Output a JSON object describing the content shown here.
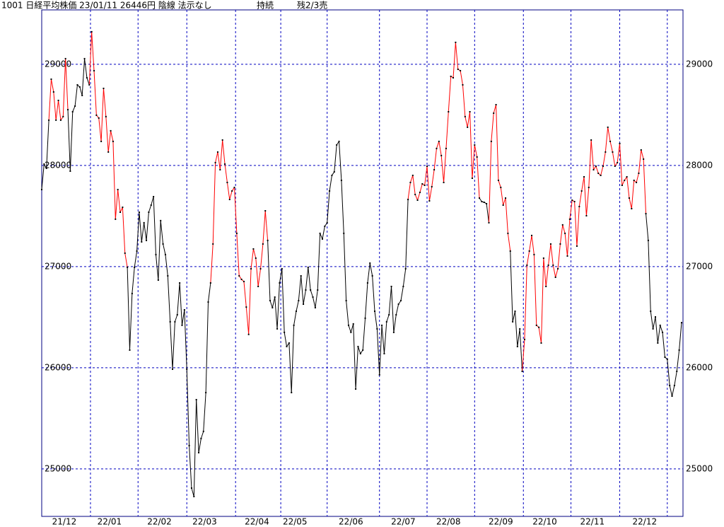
{
  "chart_data": {
    "type": "line",
    "title": "1001 日経平均株価 23/01/11 26446円 陰線 法示なし",
    "status": "持続",
    "signal": "残2/3売",
    "values": [
      27762,
      28014,
      27972,
      28448,
      28853,
      28727,
      28448,
      28643,
      28448,
      28483,
      29056,
      28552,
      27944,
      28531,
      28587,
      28797,
      28776,
      28692,
      29056,
      28867,
      28797,
      29322,
      28937,
      28497,
      28469,
      28238,
      28762,
      28483,
      28133,
      28343,
      28238,
      27469,
      27762,
      27538,
      27587,
      27133,
      26993,
      26175,
      26734,
      26993,
      27154,
      27538,
      27245,
      27434,
      27259,
      27538,
      27608,
      27692,
      27119,
      26867,
      27455,
      27224,
      27119,
      26909,
      26455,
      25986,
      26455,
      26524,
      26839,
      26420,
      26573,
      25986,
      25231,
      24811,
      24727,
      25685,
      25161,
      25301,
      25371,
      25755,
      26650,
      26839,
      27224,
      28028,
      28133,
      27958,
      28252,
      28014,
      27832,
      27664,
      27748,
      27783,
      27329,
      26909,
      26874,
      26853,
      26600,
      26330,
      26979,
      27175,
      27084,
      26804,
      26979,
      27224,
      27552,
      27259,
      26664,
      26594,
      26699,
      26385,
      26839,
      26979,
      26350,
      26210,
      26245,
      25755,
      26420,
      26559,
      26664,
      26909,
      26629,
      26769,
      26993,
      26769,
      26699,
      26594,
      26769,
      27329,
      27273,
      27399,
      27434,
      27748,
      27902,
      27937,
      28203,
      28238,
      27853,
      27329,
      26664,
      26420,
      26350,
      26434,
      25790,
      26210,
      26140,
      26175,
      26490,
      26839,
      27035,
      26909,
      26559,
      26385,
      25930,
      26420,
      26140,
      26455,
      26524,
      26804,
      26350,
      26524,
      26629,
      26664,
      26804,
      26979,
      27664,
      27832,
      27902,
      27713,
      27657,
      27734,
      27818,
      27804,
      27993,
      27650,
      27790,
      27958,
      28168,
      28238,
      28098,
      27832,
      28168,
      28531,
      28881,
      28867,
      29217,
      28951,
      28937,
      28797,
      28483,
      28378,
      28531,
      27874,
      28203,
      28084,
      27678,
      27643,
      27636,
      27622,
      27434,
      28238,
      28517,
      28601,
      27853,
      27783,
      27608,
      27678,
      27329,
      27154,
      26455,
      26559,
      26210,
      26385,
      25965,
      26280,
      27014,
      27154,
      27308,
      27119,
      26420,
      26400,
      26245,
      27084,
      26804,
      27014,
      27224,
      27014,
      26895,
      26979,
      27224,
      27413,
      27329,
      27105,
      27469,
      27657,
      27643,
      27203,
      27594,
      27748,
      27888,
      27503,
      27783,
      28252,
      27958,
      27993,
      27923,
      27902,
      27993,
      28133,
      28378,
      28238,
      28133,
      27993,
      28028,
      28217,
      27804,
      27853,
      27888,
      27678,
      27573,
      27853,
      27832,
      27923,
      28154,
      28063,
      27524,
      27259,
      26559,
      26385,
      26503,
      26245,
      26420,
      26350,
      26105,
      26084,
      25825,
      25720,
      25825,
      25965,
      26175,
      26446
    ],
    "line_color": "#000000",
    "highlight_color": "#ff0000",
    "highlight_segments": [
      [
        4,
        11
      ],
      [
        21,
        36
      ],
      [
        72,
        95
      ],
      [
        155,
        184
      ],
      [
        189,
        197
      ],
      [
        203,
        254
      ]
    ],
    "xlim": [
      0,
      269.6
    ],
    "xticks": [
      {
        "value": 9.5,
        "label": "21/12"
      },
      {
        "value": 28.5,
        "label": "22/01"
      },
      {
        "value": 49.5,
        "label": "22/02"
      },
      {
        "value": 68.5,
        "label": "22/03"
      },
      {
        "value": 90.5,
        "label": "22/04"
      },
      {
        "value": 106.5,
        "label": "22/05"
      },
      {
        "value": 130,
        "label": "22/06"
      },
      {
        "value": 152,
        "label": "22/07"
      },
      {
        "value": 171,
        "label": "22/08"
      },
      {
        "value": 193,
        "label": "22/09"
      },
      {
        "value": 211.5,
        "label": "22/10"
      },
      {
        "value": 231.5,
        "label": "22/11"
      },
      {
        "value": 253.5,
        "label": "22/12"
      }
    ],
    "xgrid": [
      20.5,
      40.5,
      61,
      81.5,
      100.5,
      120,
      142,
      162,
      182,
      202.5,
      222.5,
      243,
      263
    ],
    "ylim": [
      24531,
      29538
    ],
    "yticks": [
      25000,
      26000,
      27000,
      28000,
      29000
    ],
    "grid": true,
    "grid_color": "#0000c0",
    "frame_color": "#000080"
  }
}
